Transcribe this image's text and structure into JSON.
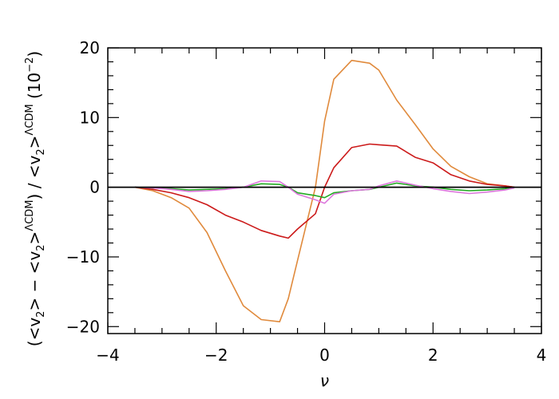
{
  "chart_data": {
    "type": "line",
    "xlabel": "ν",
    "ylabel": "(<v2> − <v2>ΛCDM) / <v2>ΛCDM (10−2)",
    "ylabel_parts": {
      "open1": "(<v",
      "sub1": "2",
      "mid1": "> − <v",
      "sub2": "2",
      "mid2": ">",
      "sup1": "ΛCDM",
      "mid3": ") / <v",
      "sub3": "2",
      "mid4": ">",
      "sup2": "ΛCDM",
      "mid5": " (10",
      "sup3": "−2",
      "end": ")"
    },
    "xlim": [
      -4,
      4
    ],
    "ylim": [
      -21,
      20
    ],
    "xticks": [
      -4,
      -2,
      0,
      2,
      4
    ],
    "xtick_labels": [
      "−4",
      "−2",
      "0",
      "2",
      "4"
    ],
    "yticks": [
      -20,
      -10,
      0,
      10,
      20
    ],
    "ytick_labels": [
      "−20",
      "−10",
      "0",
      "10",
      "20"
    ],
    "x_minor_step": 0.5,
    "y_minor_step": 2,
    "reference_line_y": 0,
    "grid": false,
    "x": [
      -3.5,
      -3.17,
      -2.83,
      -2.5,
      -2.17,
      -1.83,
      -1.5,
      -1.17,
      -0.83,
      -0.67,
      -0.5,
      -0.17,
      0.0,
      0.17,
      0.5,
      0.83,
      1.0,
      1.33,
      1.67,
      2.0,
      2.33,
      2.67,
      3.0,
      3.33,
      3.5
    ],
    "series": [
      {
        "color": "#e08a3c",
        "values": [
          0.0,
          -0.5,
          -1.5,
          -3.0,
          -6.5,
          -12.0,
          -17.0,
          -19.0,
          -19.3,
          -16.0,
          -10.5,
          0.0,
          9.5,
          15.5,
          18.2,
          17.8,
          16.8,
          12.5,
          9.0,
          5.5,
          3.0,
          1.5,
          0.5,
          0.2,
          0.0
        ]
      },
      {
        "color": "#cc1a1a",
        "values": [
          0.0,
          -0.3,
          -0.8,
          -1.5,
          -2.5,
          -4.0,
          -5.0,
          -6.2,
          -7.0,
          -7.3,
          -6.0,
          -3.8,
          0.0,
          2.8,
          5.7,
          6.2,
          6.1,
          5.9,
          4.3,
          3.5,
          1.8,
          0.9,
          0.4,
          0.2,
          0.0
        ]
      },
      {
        "color": "#22aa22",
        "values": [
          0.0,
          -0.1,
          -0.2,
          -0.4,
          -0.3,
          -0.2,
          0.0,
          0.5,
          0.4,
          0.0,
          -0.8,
          -1.2,
          -1.5,
          -0.8,
          -0.5,
          -0.3,
          0.0,
          0.6,
          0.2,
          0.0,
          -0.3,
          -0.5,
          -0.4,
          -0.2,
          0.0
        ]
      },
      {
        "color": "#dd77dd",
        "values": [
          0.0,
          -0.1,
          -0.3,
          -0.6,
          -0.5,
          -0.3,
          0.0,
          0.9,
          0.8,
          0.0,
          -1.0,
          -1.8,
          -2.3,
          -1.0,
          -0.5,
          -0.3,
          0.2,
          0.9,
          0.3,
          -0.2,
          -0.6,
          -0.9,
          -0.7,
          -0.4,
          -0.1
        ]
      }
    ]
  }
}
